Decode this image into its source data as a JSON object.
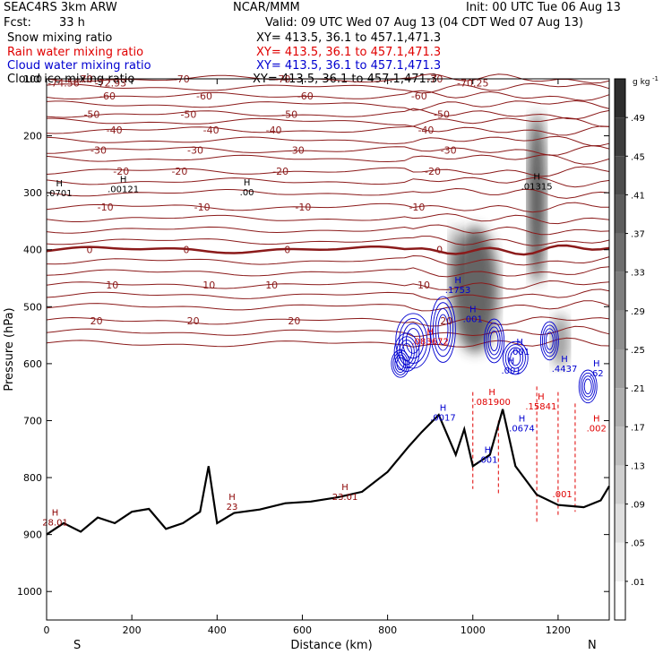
{
  "header": {
    "model": "SEAC4RS  3km ARW",
    "org": "NCAR/MMM",
    "init": "Init: 00 UTC Tue 06 Aug 13",
    "fcst_label": "Fcst:",
    "fcst_value": "33 h",
    "valid": "Valid: 09 UTC Wed 07 Aug 13 (04 CDT Wed 07 Aug 13)",
    "fields": [
      {
        "name": "Snow mixing ratio",
        "xy": "XY= 413.5, 36.1 to 457.1,471.3",
        "color": "#000000"
      },
      {
        "name": "Rain water mixing ratio",
        "xy": "XY= 413.5, 36.1 to 457.1,471.3",
        "color": "#e00000"
      },
      {
        "name": "Cloud water mixing ratio",
        "xy": "XY= 413.5, 36.1 to 457.1,471.3",
        "color": "#0000d0"
      },
      {
        "name": "Cloud ice mixing ratio",
        "xy": "XY= 413.5, 36.1 to 457.1,471.3",
        "color": "#000000"
      }
    ]
  },
  "chart_data": {
    "type": "cross-section",
    "xlabel": "Distance (km)",
    "ylabel": "Pressure (hPa)",
    "xlim": [
      0,
      1320
    ],
    "ylim": [
      100,
      1050
    ],
    "x_ticks": [
      0,
      200,
      400,
      600,
      800,
      1000,
      1200
    ],
    "y_ticks": [
      100,
      200,
      300,
      400,
      500,
      600,
      700,
      800,
      900,
      1000
    ],
    "x_end_labels": {
      "left": "S",
      "right": "N"
    },
    "colorbar": {
      "unit": "g kg",
      "unit_exponent": "-1",
      "ticks": [
        ".01",
        ".05",
        ".09",
        ".13",
        ".17",
        ".21",
        ".25",
        ".29",
        ".33",
        ".37",
        ".41",
        ".45",
        ".49"
      ]
    },
    "temperature_contours": [
      {
        "label": "-70",
        "p": 100
      },
      {
        "label": "-60",
        "p": 130
      },
      {
        "label": "-50",
        "p": 162
      },
      {
        "label": "-40",
        "p": 190
      },
      {
        "label": "-30",
        "p": 225
      },
      {
        "label": "-20",
        "p": 262
      },
      {
        "label": "-10",
        "p": 325
      },
      {
        "label": "0",
        "p": 400
      },
      {
        "label": "10",
        "p": 462
      },
      {
        "label": "20",
        "p": 525
      }
    ],
    "contour_labels": [
      {
        "text": "-74.56",
        "x": 40,
        "p": 107
      },
      {
        "text": "-72.93",
        "x": 150,
        "p": 107
      },
      {
        "text": "-70.25",
        "x": 1000,
        "p": 107
      }
    ],
    "extrema_labels": [
      {
        "mark": "H",
        "value": ".00121",
        "x": 180,
        "p": 285,
        "color": "#000000"
      },
      {
        "mark": "H",
        "value": ".00",
        "x": 470,
        "p": 290,
        "color": "#000000"
      },
      {
        "mark": "H",
        "value": ".0701",
        "x": 30,
        "p": 292,
        "color": "#000000"
      },
      {
        "mark": "H",
        "value": ".01315",
        "x": 1150,
        "p": 280,
        "color": "#000000"
      },
      {
        "mark": "H",
        "value": ".1753",
        "x": 965,
        "p": 462,
        "color": "#0000d0"
      },
      {
        "mark": "H",
        "value": ".001",
        "x": 1000,
        "p": 513,
        "color": "#0000d0"
      },
      {
        "mark": "H",
        "value": ".001",
        "x": 1110,
        "p": 570,
        "color": "#0000d0"
      },
      {
        "mark": "H",
        "value": ".001",
        "x": 1090,
        "p": 603,
        "color": "#0000d0"
      },
      {
        "mark": "H",
        "value": ".4437",
        "x": 1215,
        "p": 600,
        "color": "#0000d0"
      },
      {
        "mark": "H",
        "value": ".62",
        "x": 1290,
        "p": 608,
        "color": "#0000d0"
      },
      {
        "mark": "H",
        "value": ".0017",
        "x": 930,
        "p": 686,
        "color": "#0000d0"
      },
      {
        "mark": "H",
        "value": ".0674",
        "x": 1115,
        "p": 705,
        "color": "#0000d0"
      },
      {
        "mark": "H",
        "value": ".001",
        "x": 1035,
        "p": 760,
        "color": "#0000d0"
      },
      {
        "mark": "H",
        "value": ".083672",
        "x": 900,
        "p": 552,
        "color": "#e00000"
      },
      {
        "mark": "H",
        "value": ".081900",
        "x": 1045,
        "p": 658,
        "color": "#e00000"
      },
      {
        "mark": "H",
        "value": ".15841",
        "x": 1160,
        "p": 666,
        "color": "#e00000"
      },
      {
        "mark": "H",
        "value": ".002",
        "x": 1290,
        "p": 705,
        "color": "#e00000"
      },
      {
        "mark": "",
        "value": ".001",
        "x": 1210,
        "p": 820,
        "color": "#e00000"
      },
      {
        "mark": "H",
        "value": "28.01",
        "x": 20,
        "p": 870,
        "color": "#8b0000"
      },
      {
        "mark": "H",
        "value": "23",
        "x": 435,
        "p": 842,
        "color": "#8b0000"
      },
      {
        "mark": "H",
        "value": "23.01",
        "x": 700,
        "p": 825,
        "color": "#8b0000"
      }
    ],
    "terrain_surface": [
      {
        "x": 0,
        "p": 900
      },
      {
        "x": 40,
        "p": 880
      },
      {
        "x": 80,
        "p": 895
      },
      {
        "x": 120,
        "p": 870
      },
      {
        "x": 160,
        "p": 880
      },
      {
        "x": 200,
        "p": 860
      },
      {
        "x": 240,
        "p": 855
      },
      {
        "x": 280,
        "p": 890
      },
      {
        "x": 320,
        "p": 880
      },
      {
        "x": 360,
        "p": 860
      },
      {
        "x": 380,
        "p": 780
      },
      {
        "x": 400,
        "p": 880
      },
      {
        "x": 440,
        "p": 862
      },
      {
        "x": 500,
        "p": 856
      },
      {
        "x": 560,
        "p": 845
      },
      {
        "x": 620,
        "p": 842
      },
      {
        "x": 680,
        "p": 835
      },
      {
        "x": 740,
        "p": 825
      },
      {
        "x": 800,
        "p": 790
      },
      {
        "x": 850,
        "p": 745
      },
      {
        "x": 880,
        "p": 720
      },
      {
        "x": 920,
        "p": 690
      },
      {
        "x": 960,
        "p": 760
      },
      {
        "x": 980,
        "p": 715
      },
      {
        "x": 1000,
        "p": 780
      },
      {
        "x": 1040,
        "p": 760
      },
      {
        "x": 1070,
        "p": 680
      },
      {
        "x": 1100,
        "p": 780
      },
      {
        "x": 1150,
        "p": 830
      },
      {
        "x": 1200,
        "p": 848
      },
      {
        "x": 1260,
        "p": 852
      },
      {
        "x": 1300,
        "p": 840
      },
      {
        "x": 1320,
        "p": 815
      }
    ],
    "grid": false
  }
}
